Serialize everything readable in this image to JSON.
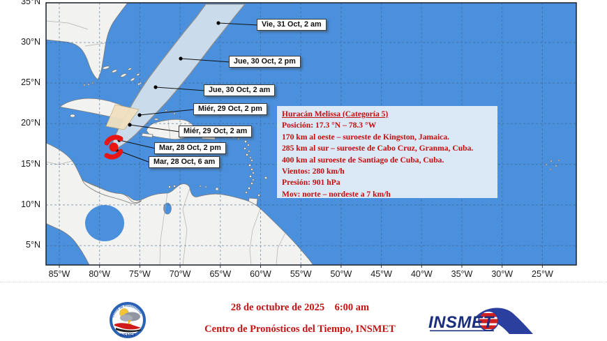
{
  "map": {
    "x_ticks": [
      "85°W",
      "80°W",
      "75°W",
      "70°W",
      "65°W",
      "60°W",
      "55°W",
      "50°W",
      "45°W",
      "40°W",
      "35°W",
      "30°W",
      "25°W"
    ],
    "y_ticks": [
      "35°N",
      "30°N",
      "25°N",
      "20°N",
      "15°N",
      "10°N",
      "5°N"
    ],
    "track_labels": [
      "Vie, 31 Oct, 2 am",
      "Jue, 30 Oct, 2 pm",
      "Jue, 30 Oct, 2 am",
      "Miér, 29 Oct, 2 pm",
      "Miér, 29 Oct, 2 am",
      "Mar, 28 Oct, 2 pm",
      "Mar, 28 Oct, 6 am"
    ],
    "hurricane_symbol": "hurricane-icon"
  },
  "info_box": {
    "title": "Huracán Melissa (Categoría 5)",
    "lines": [
      "Posición: 17.3 °N – 78.3 °W",
      "170 km al oeste – suroeste de Kingston, Jamaica.",
      "285 km al sur – suroeste de Cabo Cruz, Granma, Cuba.",
      "400 km al suroeste de Santiago de Cuba, Cuba.",
      "Vientos: 280 km/h",
      "Presión: 901 hPa",
      "Mov: norte – nordeste a 7 km/h"
    ]
  },
  "footer": {
    "datetime": "28 de octubre de 2025    6:00 am",
    "organization": "Centro de Pronósticos del Tiempo, INSMET",
    "left_logo_text": "INSMET",
    "left_logo_arc_text": "Centro de Pronósticos",
    "right_logo_text": "INSMET"
  },
  "colors": {
    "ocean": "#4a90dc",
    "land": "#f2f2f0",
    "cone": "#cadcec",
    "warning_area": "#f1e1c0",
    "accent_red": "#c60d0e",
    "hurricane_red": "#e81512",
    "logo_blue": "#1b2e7b"
  }
}
